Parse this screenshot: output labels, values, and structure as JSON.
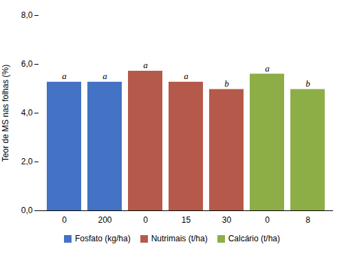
{
  "chart_data": {
    "type": "bar",
    "categories": [
      "0",
      "200",
      "0",
      "15",
      "30",
      "0",
      "8"
    ],
    "series": [
      {
        "name": "Fosfato (kg/ha)",
        "color": "#4472C4",
        "values": [
          5.27,
          5.27,
          null,
          null,
          null,
          null,
          null
        ]
      },
      {
        "name": "Nutrimais (t/ha)",
        "color": "#B55A4A",
        "values": [
          null,
          null,
          5.72,
          5.27,
          4.97,
          null,
          null
        ]
      },
      {
        "name": "Calcário (t/ha)",
        "color": "#8DAE47",
        "values": [
          null,
          null,
          null,
          null,
          null,
          5.6,
          4.97
        ]
      }
    ],
    "annotations": [
      "a",
      "a",
      "a",
      "a",
      "b",
      "a",
      "b"
    ],
    "ylabel": "Teor de MS nas folhas (%)",
    "ylim": [
      0,
      8.0
    ],
    "yticks": [
      {
        "value": 0.0,
        "label": "0,0"
      },
      {
        "value": 2.0,
        "label": "2,0"
      },
      {
        "value": 4.0,
        "label": "4,0"
      },
      {
        "value": 6.0,
        "label": "6,0"
      },
      {
        "value": 8.0,
        "label": "8,0"
      }
    ],
    "grid": false,
    "legend": "bottom"
  }
}
